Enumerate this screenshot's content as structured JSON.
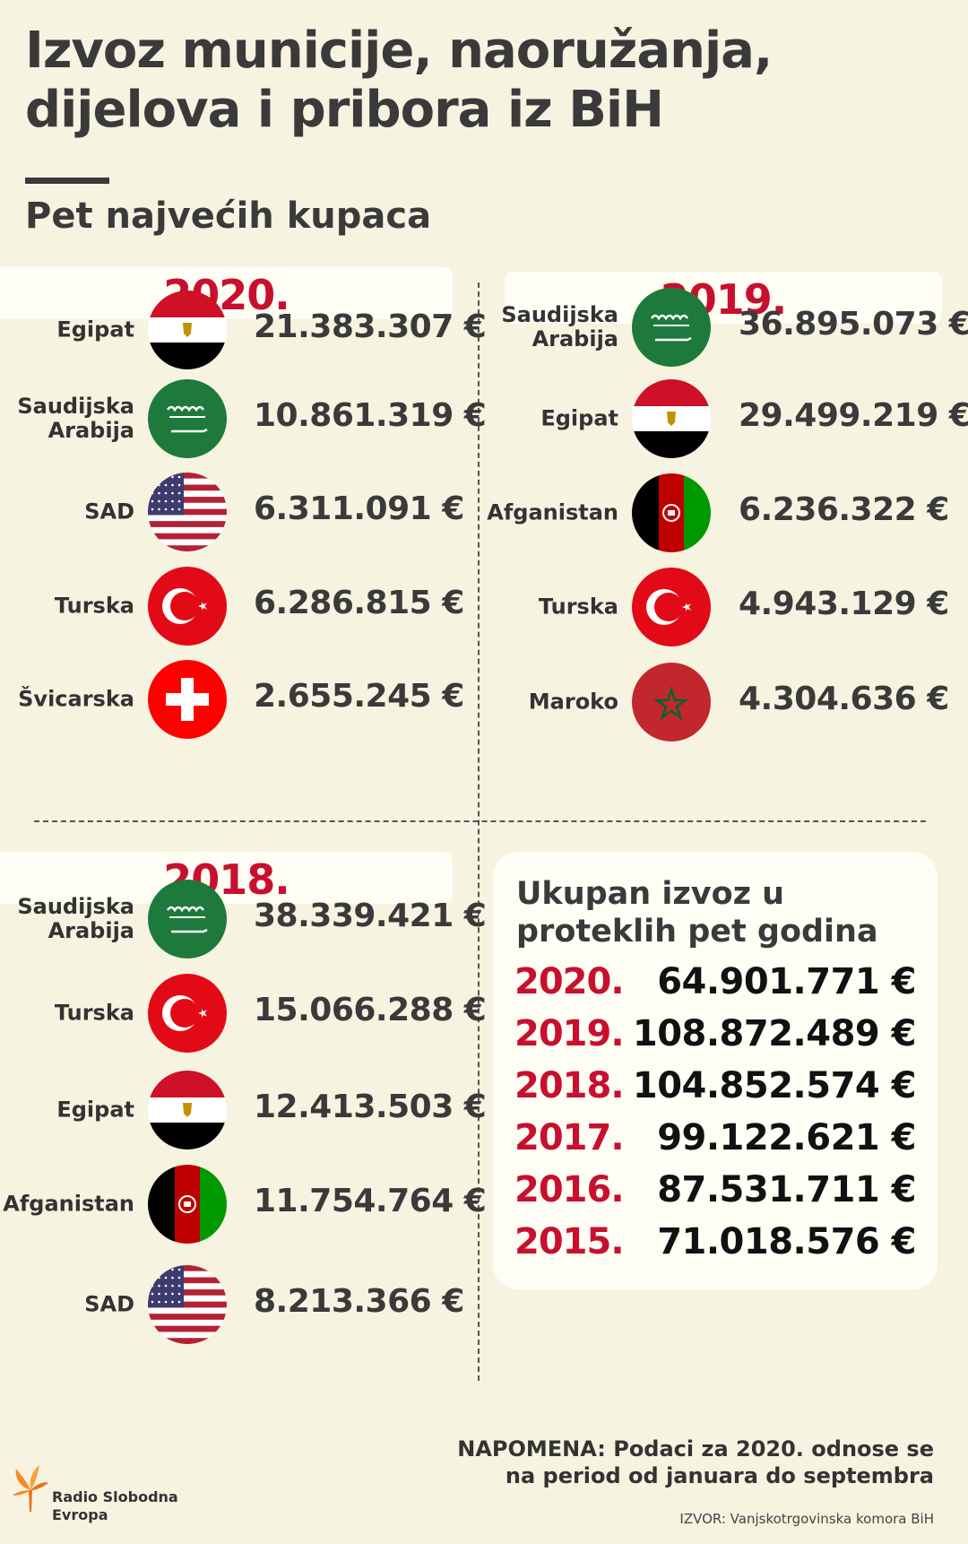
{
  "title_line1": "Izvoz municije, naoružanja,",
  "title_line2": "dijelova i pribora iz BiH",
  "subtitle": "Pet najvećih kupaca",
  "sections": [
    {
      "year": "2020.",
      "rows": [
        {
          "line1": "Egipat",
          "line2": "",
          "flag": "egypt-flag",
          "value": "21.383.307 €"
        },
        {
          "line1": "Saudijska",
          "line2": "Arabija",
          "flag": "saudi-flag",
          "value": "10.861.319 €"
        },
        {
          "line1": "SAD",
          "line2": "",
          "flag": "usa-flag",
          "value": "6.311.091 €"
        },
        {
          "line1": "Turska",
          "line2": "",
          "flag": "turkey-flag",
          "value": "6.286.815 €"
        },
        {
          "line1": "Švicarska",
          "line2": "",
          "flag": "switzerland-flag",
          "value": "2.655.245 €"
        }
      ]
    },
    {
      "year": "2019.",
      "rows": [
        {
          "line1": "Saudijska",
          "line2": "Arabija",
          "flag": "saudi-flag",
          "value": "36.895.073 €"
        },
        {
          "line1": "Egipat",
          "line2": "",
          "flag": "egypt-flag",
          "value": "29.499.219 €"
        },
        {
          "line1": "Afganistan",
          "line2": "",
          "flag": "afghanistan-flag",
          "value": "6.236.322 €"
        },
        {
          "line1": "Turska",
          "line2": "",
          "flag": "turkey-flag",
          "value": "4.943.129 €"
        },
        {
          "line1": "Maroko",
          "line2": "",
          "flag": "morocco-flag",
          "value": "4.304.636 €"
        }
      ]
    },
    {
      "year": "2018.",
      "rows": [
        {
          "line1": "Saudijska",
          "line2": "Arabija",
          "flag": "saudi-flag",
          "value": "38.339.421 €"
        },
        {
          "line1": "Turska",
          "line2": "",
          "flag": "turkey-flag",
          "value": "15.066.288 €"
        },
        {
          "line1": "Egipat",
          "line2": "",
          "flag": "egypt-flag",
          "value": "12.413.503 €"
        },
        {
          "line1": "Afganistan",
          "line2": "",
          "flag": "afghanistan-flag",
          "value": "11.754.764 €"
        },
        {
          "line1": "SAD",
          "line2": "",
          "flag": "usa-flag",
          "value": "8.213.366 €"
        }
      ]
    }
  ],
  "totals": {
    "heading_line1": "Ukupan izvoz u",
    "heading_line2": "proteklih pet godina",
    "rows": [
      {
        "year": "2020.",
        "value": "64.901.771 €"
      },
      {
        "year": "2019.",
        "value": "108.872.489 €"
      },
      {
        "year": "2018.",
        "value": "104.852.574 €"
      },
      {
        "year": "2017.",
        "value": "99.122.621 €"
      },
      {
        "year": "2016.",
        "value": "87.531.711 €"
      },
      {
        "year": "2015.",
        "value": "71.018.576 €"
      }
    ]
  },
  "note_line1": "NAPOMENA: Podaci za 2020. odnose se",
  "note_line2": "na period od januara do septembra",
  "source": "IZVOR: Vanjskotrgovinska komora BiH",
  "logo_line1": "Radio Slobodna",
  "logo_line2": "Evropa",
  "colors": {
    "accent": "#c8102e",
    "background": "#f7f3e1",
    "text": "#333333"
  }
}
